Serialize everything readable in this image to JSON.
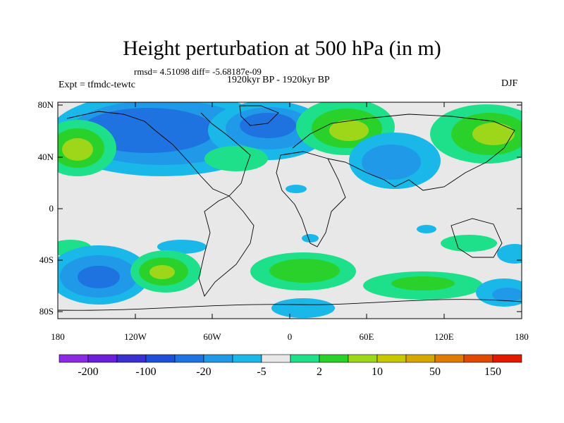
{
  "title": "Height perturbation at 500 hPa (in m)",
  "stats": "rmsd= 4.51098 diff= -5.68187e-09",
  "period": "1920kyr BP - 1920kyr BP",
  "experiment": "Expt = tfmdc-tewtc",
  "season": "DJF",
  "chart_data": {
    "type": "map",
    "projection": "cylindrical-equidistant",
    "variable": "500 hPa geopotential height perturbation (m)",
    "lat_ticks": [
      "80N",
      "40N",
      "0",
      "40S",
      "80S"
    ],
    "lon_ticks": [
      "180",
      "120W",
      "60W",
      "0",
      "60E",
      "120E",
      "180"
    ],
    "anomaly_regions": [
      {
        "region": "North Pacific / North America",
        "sign": "negative",
        "level": "-20"
      },
      {
        "region": "North Atlantic / Greenland",
        "sign": "negative",
        "level": "-20"
      },
      {
        "region": "Western Europe / Scandinavia",
        "sign": "positive",
        "level": "10"
      },
      {
        "region": "Central Asia / Middle East",
        "sign": "negative",
        "level": "-5"
      },
      {
        "region": "North Pacific (west)",
        "sign": "positive",
        "level": "10"
      },
      {
        "region": "South Pacific (west)",
        "sign": "negative",
        "level": "-20"
      },
      {
        "region": "South Pacific (east)",
        "sign": "positive",
        "level": "10"
      },
      {
        "region": "South Atlantic",
        "sign": "positive",
        "level": "10"
      },
      {
        "region": "Southern Indian Ocean",
        "sign": "positive",
        "level": "2"
      },
      {
        "region": "Southern Ocean (south of Africa)",
        "sign": "negative",
        "level": "-5"
      }
    ]
  },
  "colorbar": {
    "colors": [
      "#8a2be2",
      "#6a1fd8",
      "#3a2fcf",
      "#1f4fd8",
      "#1f73e0",
      "#1f99e8",
      "#19b8e8",
      "#e8e8e8",
      "#1ee08a",
      "#2bd12b",
      "#9ed61a",
      "#c8c800",
      "#d4a800",
      "#e07a00",
      "#e04a00",
      "#e01a00"
    ],
    "labels": [
      "-200",
      "-100",
      "-20",
      "-5",
      "2",
      "10",
      "50",
      "150"
    ]
  }
}
